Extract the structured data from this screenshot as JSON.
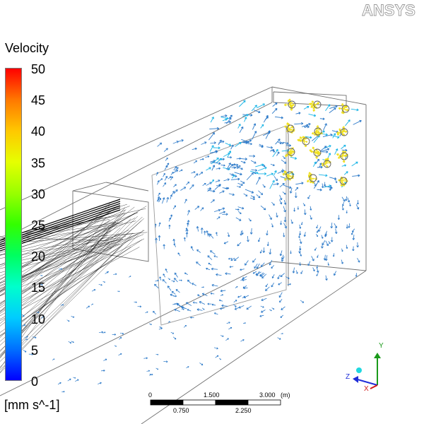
{
  "brand": "ANSYS",
  "legend": {
    "title": "Velocity",
    "units": "[mm s^-1]",
    "ticks": [
      "50",
      "45",
      "40",
      "35",
      "30",
      "25",
      "20",
      "15",
      "10",
      "5",
      "0"
    ]
  },
  "scale_bar": {
    "top_labels": [
      "0",
      "1.500",
      "3.000"
    ],
    "unit": "(m)",
    "bottom_labels": [
      "0.750",
      "2.250"
    ]
  },
  "triad": {
    "y": "Y",
    "z": "Z",
    "x": "X"
  },
  "colors": {
    "wireframe": "#707070",
    "arrow_low": "#2a78c8",
    "arrow_mid": "#18b4e6",
    "arrow_high": "#f0e020",
    "mesh": "#000000"
  }
}
